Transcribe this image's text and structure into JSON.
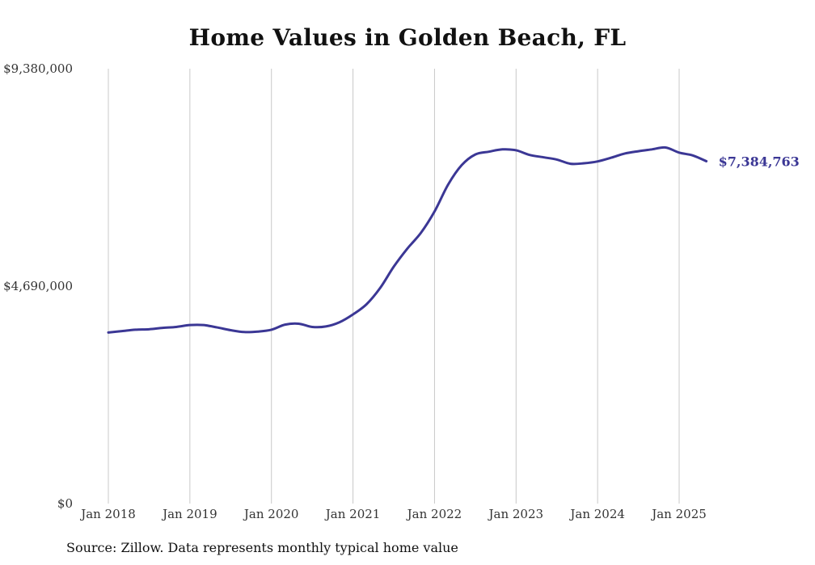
{
  "chart_data": {
    "type": "line",
    "title": "Home Values in Golden Beach, FL",
    "xlabel": "",
    "ylabel": "",
    "ylim": [
      0,
      9380000
    ],
    "y_ticks": [
      {
        "value": 0,
        "label": "$0"
      },
      {
        "value": 4690000,
        "label": "$4,690,000"
      },
      {
        "value": 9380000,
        "label": "$9,380,000"
      }
    ],
    "x_ticks": [
      {
        "value": 2018.0,
        "label": "Jan 2018"
      },
      {
        "value": 2019.0,
        "label": "Jan 2019"
      },
      {
        "value": 2020.0,
        "label": "Jan 2020"
      },
      {
        "value": 2021.0,
        "label": "Jan 2021"
      },
      {
        "value": 2022.0,
        "label": "Jan 2022"
      },
      {
        "value": 2023.0,
        "label": "Jan 2023"
      },
      {
        "value": 2024.0,
        "label": "Jan 2024"
      },
      {
        "value": 2025.0,
        "label": "Jan 2025"
      }
    ],
    "grid": "vertical",
    "line_color": "#3b3795",
    "end_label": "$7,384,763",
    "series": [
      {
        "x": [
          2018.0,
          2018.1667,
          2018.3333,
          2018.5,
          2018.6667,
          2018.8333,
          2019.0,
          2019.1667,
          2019.3333,
          2019.5,
          2019.6667,
          2019.8333,
          2020.0,
          2020.1667,
          2020.3333,
          2020.5,
          2020.6667,
          2020.8333,
          2021.0,
          2021.1667,
          2021.3333,
          2021.5,
          2021.6667,
          2021.8333,
          2022.0,
          2022.1667,
          2022.3333,
          2022.5,
          2022.6667,
          2022.8333,
          2023.0,
          2023.1667,
          2023.3333,
          2023.5,
          2023.6667,
          2023.8333,
          2024.0,
          2024.1667,
          2024.3333,
          2024.5,
          2024.6667,
          2024.8333,
          2025.0,
          2025.1667,
          2025.3333
        ],
        "values": [
          3690000,
          3720000,
          3750000,
          3760000,
          3790000,
          3810000,
          3850000,
          3850000,
          3800000,
          3740000,
          3700000,
          3710000,
          3750000,
          3860000,
          3880000,
          3810000,
          3820000,
          3910000,
          4080000,
          4300000,
          4650000,
          5110000,
          5500000,
          5840000,
          6300000,
          6880000,
          7300000,
          7530000,
          7590000,
          7640000,
          7620000,
          7520000,
          7470000,
          7420000,
          7330000,
          7340000,
          7380000,
          7460000,
          7550000,
          7600000,
          7640000,
          7680000,
          7570000,
          7510000,
          7384763
        ]
      }
    ]
  },
  "source_text": "Source: Zillow. Data represents monthly typical home value"
}
